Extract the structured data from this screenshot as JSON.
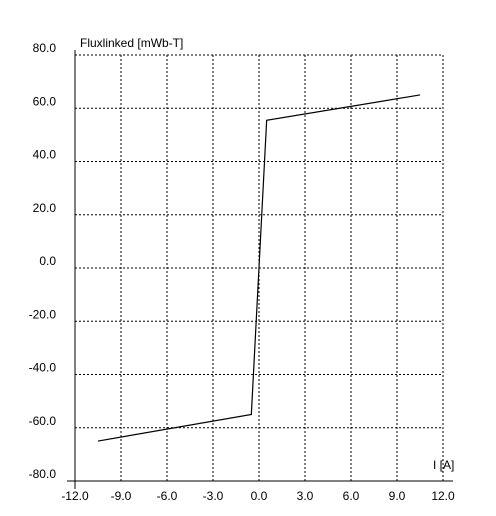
{
  "chart_data": {
    "type": "line",
    "title": "Fluxlinked [mWb-T]",
    "x_label": "I [A]",
    "x": [
      -10.5,
      -0.5,
      0.5,
      10.5
    ],
    "values": [
      -65,
      -55,
      55.5,
      65
    ],
    "color": "#000000",
    "xlim": [
      -12,
      12
    ],
    "ylim": [
      -80,
      80
    ],
    "xticks": [
      {
        "value": -12,
        "label": "-12.0"
      },
      {
        "value": -9,
        "label": "-9.0"
      },
      {
        "value": -6,
        "label": "-6.0"
      },
      {
        "value": -3,
        "label": "-3.0"
      },
      {
        "value": 0,
        "label": "0.0"
      },
      {
        "value": 3,
        "label": "3.0"
      },
      {
        "value": 6,
        "label": "6.0"
      },
      {
        "value": 9,
        "label": "9.0"
      },
      {
        "value": 12,
        "label": "12.0"
      }
    ],
    "yticks": [
      {
        "value": -80,
        "label": "-80.0"
      },
      {
        "value": -60,
        "label": "-60.0"
      },
      {
        "value": -40,
        "label": "-40.0"
      },
      {
        "value": -20,
        "label": "-20.0"
      },
      {
        "value": 0,
        "label": "0.0"
      },
      {
        "value": 20,
        "label": "20.0"
      },
      {
        "value": 40,
        "label": "40.0"
      },
      {
        "value": 60,
        "label": "60.0"
      },
      {
        "value": 80,
        "label": "80.0"
      }
    ],
    "grid": true
  }
}
